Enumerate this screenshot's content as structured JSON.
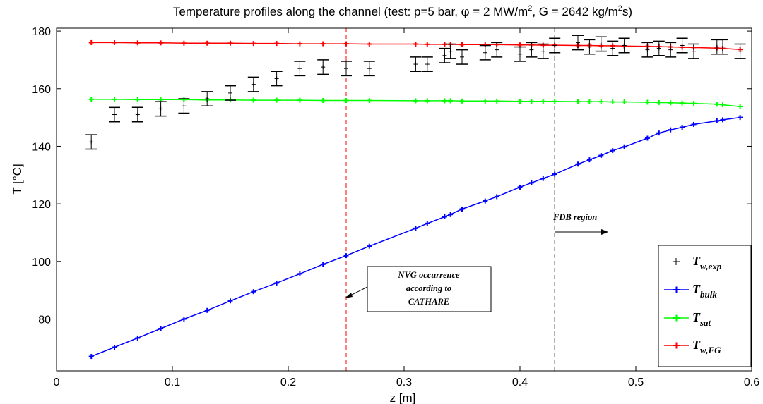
{
  "chart_data": {
    "type": "line",
    "title_parts": [
      "Temperature profiles along the channel (test: p=5 bar, ",
      "φ",
      " = 2 MW/m",
      "2",
      ", G = 2642 kg/m",
      "2",
      "s)"
    ],
    "xlabel": "z [m]",
    "ylabel": "T [°C]",
    "xlim": [
      0,
      0.6
    ],
    "ylim": [
      62,
      181
    ],
    "x_ticks": [
      0,
      0.1,
      0.2,
      0.3,
      0.4,
      0.5,
      0.6
    ],
    "x_tick_labels": [
      "0",
      "0.1",
      "0.2",
      "0.3",
      "0.4",
      "0.5",
      "0.6"
    ],
    "y_ticks": [
      80,
      100,
      120,
      140,
      160,
      180
    ],
    "y_tick_labels": [
      "80",
      "100",
      "120",
      "140",
      "160",
      "180"
    ],
    "grid": false,
    "legend_position": "bottom-right",
    "series": [
      {
        "name_main": "T",
        "name_sub": "w,exp",
        "style": "errorbar",
        "color": "#000000",
        "x": [
          0.03,
          0.05,
          0.07,
          0.09,
          0.11,
          0.13,
          0.15,
          0.17,
          0.19,
          0.21,
          0.23,
          0.25,
          0.27,
          0.31,
          0.32,
          0.335,
          0.34,
          0.35,
          0.37,
          0.38,
          0.4,
          0.41,
          0.42,
          0.43,
          0.45,
          0.46,
          0.47,
          0.48,
          0.49,
          0.51,
          0.52,
          0.53,
          0.54,
          0.55,
          0.57,
          0.575,
          0.59
        ],
        "y": [
          141.5,
          151.0,
          151.0,
          153.0,
          154.0,
          156.5,
          158.5,
          161.5,
          163.5,
          167.0,
          167.5,
          167.0,
          167.0,
          168.5,
          168.5,
          171.5,
          173.0,
          171.0,
          172.5,
          173.5,
          172.0,
          173.5,
          173.0,
          175.0,
          176.0,
          174.5,
          175.5,
          174.0,
          175.0,
          173.5,
          174.0,
          173.5,
          175.0,
          173.0,
          174.5,
          174.5,
          173.0
        ],
        "err": [
          2.5,
          2.5,
          2.5,
          2.5,
          2.5,
          2.5,
          2.5,
          2.5,
          2.5,
          2.5,
          2.5,
          2.5,
          2.5,
          2.5,
          2.5,
          2.5,
          2.5,
          2.5,
          2.5,
          2.5,
          2.5,
          2.5,
          2.5,
          2.5,
          2.5,
          2.5,
          2.5,
          2.5,
          2.5,
          2.5,
          2.5,
          2.5,
          2.5,
          2.5,
          2.5,
          2.5,
          2.5
        ]
      },
      {
        "name_main": "T",
        "name_sub": "bulk",
        "style": "line-marker",
        "color": "#0000ff",
        "x": [
          0.03,
          0.05,
          0.07,
          0.09,
          0.11,
          0.13,
          0.15,
          0.17,
          0.19,
          0.21,
          0.23,
          0.25,
          0.27,
          0.31,
          0.32,
          0.335,
          0.34,
          0.35,
          0.37,
          0.38,
          0.4,
          0.41,
          0.42,
          0.43,
          0.45,
          0.46,
          0.47,
          0.48,
          0.49,
          0.51,
          0.52,
          0.53,
          0.54,
          0.55,
          0.57,
          0.575,
          0.59
        ],
        "y": [
          67.0,
          70.2,
          73.4,
          76.7,
          80.0,
          83.0,
          86.3,
          89.5,
          92.5,
          95.7,
          99.0,
          102.0,
          105.3,
          111.5,
          113.2,
          115.5,
          116.3,
          118.2,
          121.0,
          122.5,
          125.8,
          127.3,
          128.8,
          130.3,
          133.8,
          135.3,
          136.8,
          138.5,
          139.8,
          142.8,
          144.6,
          145.7,
          146.6,
          147.6,
          148.8,
          149.2,
          150.0
        ]
      },
      {
        "name_main": "T",
        "name_sub": "sat",
        "style": "line-marker",
        "color": "#00ff00",
        "x": [
          0.03,
          0.05,
          0.07,
          0.09,
          0.11,
          0.13,
          0.15,
          0.17,
          0.19,
          0.21,
          0.23,
          0.25,
          0.27,
          0.31,
          0.32,
          0.335,
          0.34,
          0.35,
          0.37,
          0.38,
          0.4,
          0.41,
          0.42,
          0.43,
          0.45,
          0.46,
          0.47,
          0.48,
          0.49,
          0.51,
          0.52,
          0.53,
          0.54,
          0.55,
          0.57,
          0.575,
          0.59
        ],
        "y": [
          156.3,
          156.3,
          156.2,
          156.2,
          156.2,
          156.1,
          156.1,
          156.0,
          156.0,
          156.0,
          155.9,
          155.9,
          155.9,
          155.8,
          155.8,
          155.8,
          155.8,
          155.7,
          155.7,
          155.7,
          155.6,
          155.6,
          155.6,
          155.6,
          155.5,
          155.5,
          155.5,
          155.4,
          155.4,
          155.3,
          155.2,
          155.1,
          155.0,
          154.9,
          154.6,
          154.4,
          153.8
        ]
      },
      {
        "name_main": "T",
        "name_sub": "w,FG",
        "style": "line-marker",
        "color": "#ff0000",
        "x": [
          0.03,
          0.05,
          0.07,
          0.09,
          0.11,
          0.13,
          0.15,
          0.17,
          0.19,
          0.21,
          0.23,
          0.25,
          0.27,
          0.31,
          0.32,
          0.335,
          0.34,
          0.35,
          0.37,
          0.38,
          0.4,
          0.41,
          0.42,
          0.43,
          0.45,
          0.46,
          0.47,
          0.48,
          0.49,
          0.51,
          0.52,
          0.53,
          0.54,
          0.55,
          0.57,
          0.575,
          0.59
        ],
        "y": [
          176.0,
          176.0,
          175.9,
          175.9,
          175.8,
          175.8,
          175.8,
          175.7,
          175.7,
          175.6,
          175.6,
          175.6,
          175.5,
          175.5,
          175.4,
          175.4,
          175.4,
          175.3,
          175.3,
          175.3,
          175.2,
          175.2,
          175.1,
          175.1,
          175.0,
          175.0,
          174.9,
          174.9,
          174.8,
          174.7,
          174.6,
          174.5,
          174.4,
          174.3,
          174.1,
          174.0,
          173.6
        ]
      }
    ],
    "vlines": [
      {
        "x": 0.25,
        "color": "#ff0000",
        "dash": true
      },
      {
        "x": 0.43,
        "color": "#000000",
        "dash": true
      }
    ],
    "annotations": [
      {
        "id": "nvg",
        "lines": [
          "NVG occurrence",
          "according to",
          "CATHARE"
        ],
        "boxed": true
      },
      {
        "id": "fdb",
        "lines": [
          "FDB region"
        ],
        "boxed": false
      }
    ]
  }
}
